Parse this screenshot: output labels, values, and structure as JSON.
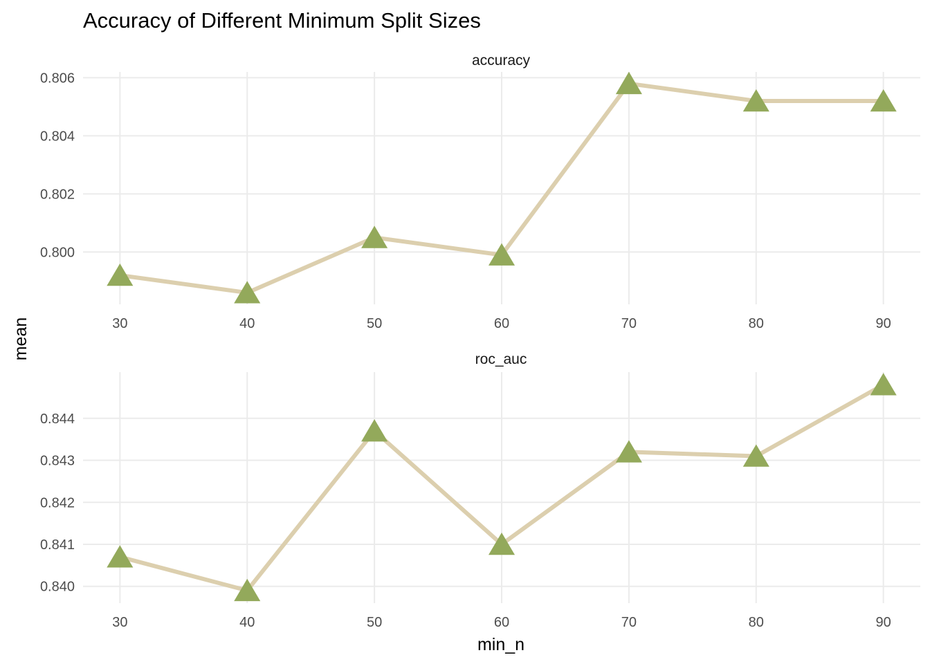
{
  "chart_data": {
    "type": "line",
    "title": "Accuracy of Different Minimum Split Sizes",
    "xlabel": "min_n",
    "ylabel": "mean",
    "grid": true,
    "x": [
      30,
      40,
      50,
      60,
      70,
      80,
      90
    ],
    "x_ticks": [
      30,
      40,
      50,
      60,
      70,
      80,
      90
    ],
    "x_tick_labels": [
      "30",
      "40",
      "50",
      "60",
      "70",
      "80",
      "90"
    ],
    "colors": {
      "line": "#dccfae",
      "marker": "#93a95b",
      "grid": "#ebebeb"
    },
    "marker": "triangle",
    "facets": [
      {
        "name": "accuracy",
        "values": [
          0.7992,
          0.7986,
          0.8005,
          0.7999,
          0.8058,
          0.8052,
          0.8052
        ],
        "ylim": [
          0.7982,
          0.8062
        ],
        "y_ticks": [
          0.8,
          0.802,
          0.804,
          0.806
        ],
        "y_tick_labels": [
          "0.800",
          "0.802",
          "0.804",
          "0.806"
        ]
      },
      {
        "name": "roc_auc",
        "values": [
          0.8407,
          0.8399,
          0.8437,
          0.841,
          0.8432,
          0.8431,
          0.8448
        ],
        "ylim": [
          0.8396,
          0.8451
        ],
        "y_ticks": [
          0.84,
          0.841,
          0.842,
          0.843,
          0.844
        ],
        "y_tick_labels": [
          "0.840",
          "0.841",
          "0.842",
          "0.843",
          "0.844"
        ]
      }
    ]
  }
}
